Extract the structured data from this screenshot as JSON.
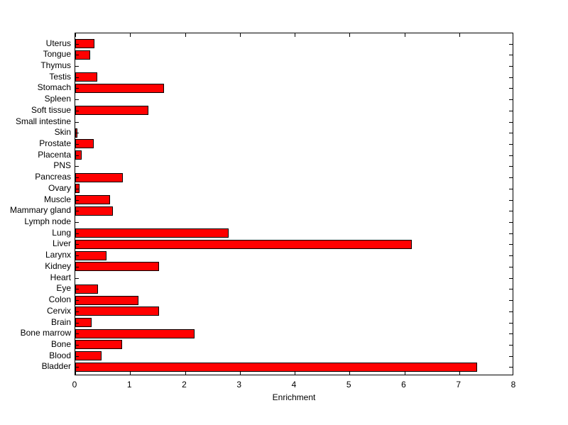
{
  "figure": {
    "background": "#ffffff"
  },
  "chart_data": {
    "type": "bar",
    "orientation": "horizontal",
    "title": "",
    "xlabel": "Enrichment",
    "ylabel": "",
    "xlim": [
      0,
      8
    ],
    "x_ticks": [
      0,
      1,
      2,
      3,
      4,
      5,
      6,
      7,
      8
    ],
    "grid": false,
    "legend": null,
    "bar_color": "#ff0000",
    "bar_edge_color": "#000000",
    "axis_color": "#000000",
    "categories_top_to_bottom": [
      "Uterus",
      "Tongue",
      "Thymus",
      "Testis",
      "Stomach",
      "Spleen",
      "Soft tissue",
      "Small intestine",
      "Skin",
      "Prostate",
      "Placenta",
      "PNS",
      "Pancreas",
      "Ovary",
      "Muscle",
      "Mammary gland",
      "Lymph node",
      "Lung",
      "Liver",
      "Larynx",
      "Kidney",
      "Heart",
      "Eye",
      "Colon",
      "Cervix",
      "Brain",
      "Bone marrow",
      "Bone",
      "Blood",
      "Bladder"
    ],
    "values": [
      0.35,
      0.27,
      0,
      0.4,
      1.62,
      0,
      1.33,
      0,
      0.04,
      0.34,
      0.12,
      0,
      0.87,
      0.08,
      0.64,
      0.68,
      0,
      2.8,
      6.13,
      0.57,
      1.53,
      0,
      0.41,
      1.15,
      1.53,
      0.3,
      2.17,
      0.86,
      0.48,
      7.33
    ]
  }
}
